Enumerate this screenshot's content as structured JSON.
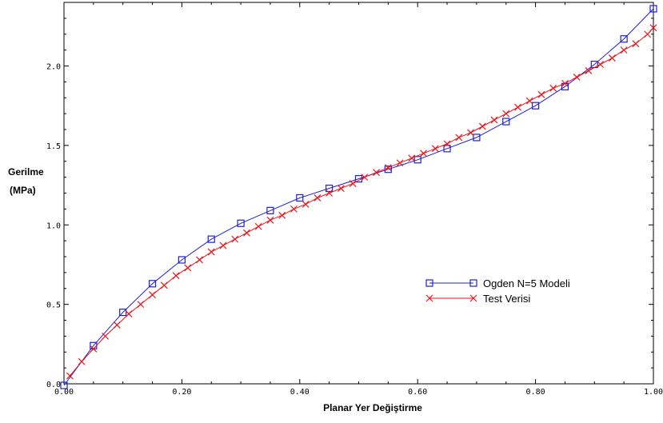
{
  "chart_data": {
    "type": "line",
    "title": "",
    "xlabel": "Planar  Yer Değiştirme",
    "ylabel_lines": [
      "Gerilme",
      "(MPa)"
    ],
    "xlim": [
      0,
      1
    ],
    "ylim": [
      0,
      2.4
    ],
    "grid": false,
    "legend_position": "center-right",
    "x_ticks": [
      0.0,
      0.2,
      0.4,
      0.6,
      0.8,
      1.0
    ],
    "x_tick_labels": [
      "0.00",
      "0.20",
      "0.40",
      "0.60",
      "0.80",
      "1.00"
    ],
    "y_ticks": [
      0.0,
      0.5,
      1.0,
      1.5,
      2.0
    ],
    "y_tick_labels": [
      "0.0",
      "0.5",
      "1.0",
      "1.5",
      "2.0"
    ],
    "series": [
      {
        "name": "Ogden N=5 Modeli",
        "color": "#1f1fd6",
        "marker": "square",
        "points": [
          [
            0.0,
            -0.01
          ],
          [
            0.05,
            0.24
          ],
          [
            0.1,
            0.45
          ],
          [
            0.15,
            0.63
          ],
          [
            0.2,
            0.78
          ],
          [
            0.25,
            0.91
          ],
          [
            0.3,
            1.01
          ],
          [
            0.35,
            1.09
          ],
          [
            0.4,
            1.17
          ],
          [
            0.45,
            1.23
          ],
          [
            0.5,
            1.29
          ],
          [
            0.55,
            1.35
          ],
          [
            0.6,
            1.41
          ],
          [
            0.65,
            1.48
          ],
          [
            0.7,
            1.55
          ],
          [
            0.75,
            1.65
          ],
          [
            0.8,
            1.75
          ],
          [
            0.85,
            1.87
          ],
          [
            0.9,
            2.01
          ],
          [
            0.95,
            2.17
          ],
          [
            1.0,
            2.36
          ]
        ]
      },
      {
        "name": "Test Verisi",
        "color": "#e8141a",
        "marker": "x",
        "points": [
          [
            0.01,
            0.05
          ],
          [
            0.03,
            0.14
          ],
          [
            0.05,
            0.22
          ],
          [
            0.07,
            0.3
          ],
          [
            0.09,
            0.37
          ],
          [
            0.11,
            0.44
          ],
          [
            0.13,
            0.5
          ],
          [
            0.15,
            0.56
          ],
          [
            0.17,
            0.62
          ],
          [
            0.19,
            0.68
          ],
          [
            0.21,
            0.73
          ],
          [
            0.23,
            0.78
          ],
          [
            0.25,
            0.83
          ],
          [
            0.27,
            0.87
          ],
          [
            0.29,
            0.91
          ],
          [
            0.31,
            0.95
          ],
          [
            0.33,
            0.99
          ],
          [
            0.35,
            1.03
          ],
          [
            0.37,
            1.06
          ],
          [
            0.39,
            1.1
          ],
          [
            0.41,
            1.13
          ],
          [
            0.43,
            1.17
          ],
          [
            0.45,
            1.2
          ],
          [
            0.47,
            1.23
          ],
          [
            0.49,
            1.26
          ],
          [
            0.51,
            1.3
          ],
          [
            0.53,
            1.33
          ],
          [
            0.55,
            1.36
          ],
          [
            0.57,
            1.39
          ],
          [
            0.59,
            1.42
          ],
          [
            0.61,
            1.45
          ],
          [
            0.63,
            1.48
          ],
          [
            0.65,
            1.51
          ],
          [
            0.67,
            1.55
          ],
          [
            0.69,
            1.58
          ],
          [
            0.71,
            1.62
          ],
          [
            0.73,
            1.66
          ],
          [
            0.75,
            1.7
          ],
          [
            0.77,
            1.74
          ],
          [
            0.79,
            1.78
          ],
          [
            0.81,
            1.82
          ],
          [
            0.83,
            1.86
          ],
          [
            0.85,
            1.89
          ],
          [
            0.87,
            1.93
          ],
          [
            0.89,
            1.97
          ],
          [
            0.91,
            2.01
          ],
          [
            0.93,
            2.05
          ],
          [
            0.95,
            2.1
          ],
          [
            0.97,
            2.14
          ],
          [
            0.99,
            2.2
          ],
          [
            1.0,
            2.24
          ]
        ]
      }
    ]
  }
}
